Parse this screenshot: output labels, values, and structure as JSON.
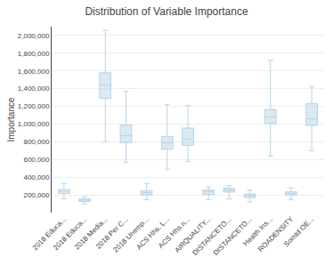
{
  "chart_data": {
    "type": "box",
    "title": "Distribution of Variable Importance",
    "ylabel": "Importance",
    "color": "#b8d4e8",
    "categories": [
      "2018 Educa...",
      "2018 Educa...",
      "2018 Media...",
      "2018 Per C...",
      "2018 Unemp...",
      "ACS Hhs. L...",
      "ACS Hhs.n...",
      "AIRQUALITY...",
      "DISTANCETO...",
      "DISTANCETO...",
      "Health Ins...",
      "ROADENSITY",
      "Somtd OE..."
    ],
    "boxes": [
      {
        "q1": 215000,
        "median": 240000,
        "q3": 260000,
        "whisker_low": 155000,
        "whisker_high": 330000
      },
      {
        "q1": 125000,
        "median": 140000,
        "q3": 155000,
        "whisker_low": 100000,
        "whisker_high": 180000
      },
      {
        "q1": 1290000,
        "median": 1440000,
        "q3": 1580000,
        "whisker_low": 800000,
        "whisker_high": 2060000
      },
      {
        "q1": 790000,
        "median": 870000,
        "q3": 990000,
        "whisker_low": 570000,
        "whisker_high": 1370000
      },
      {
        "q1": 200000,
        "median": 225000,
        "q3": 245000,
        "whisker_low": 145000,
        "whisker_high": 330000
      },
      {
        "q1": 715000,
        "median": 790000,
        "q3": 860000,
        "whisker_low": 490000,
        "whisker_high": 1220000
      },
      {
        "q1": 760000,
        "median": 830000,
        "q3": 955000,
        "whisker_low": 575000,
        "whisker_high": 1210000
      },
      {
        "q1": 205000,
        "median": 235000,
        "q3": 255000,
        "whisker_low": 145000,
        "whisker_high": 290000
      },
      {
        "q1": 232000,
        "median": 255000,
        "q3": 275000,
        "whisker_low": 155000,
        "whisker_high": 305000
      },
      {
        "q1": 170000,
        "median": 190000,
        "q3": 210000,
        "whisker_low": 120000,
        "whisker_high": 255000
      },
      {
        "q1": 1005000,
        "median": 1080000,
        "q3": 1165000,
        "whisker_low": 640000,
        "whisker_high": 1720000
      },
      {
        "q1": 200000,
        "median": 218000,
        "q3": 235000,
        "whisker_low": 145000,
        "whisker_high": 280000
      },
      {
        "q1": 985000,
        "median": 1060000,
        "q3": 1230000,
        "whisker_low": 700000,
        "whisker_high": 1420000
      }
    ],
    "ylim": [
      0,
      2100000
    ],
    "yticks": [
      {
        "value": 200000,
        "label": "200,000"
      },
      {
        "value": 400000,
        "label": "400,000"
      },
      {
        "value": 600000,
        "label": "600,000"
      },
      {
        "value": 800000,
        "label": "800,000"
      },
      {
        "value": 1000000,
        "label": "1,000,000"
      },
      {
        "value": 1200000,
        "label": "1,200,000"
      },
      {
        "value": 1400000,
        "label": "1,400,000"
      },
      {
        "value": 1600000,
        "label": "1,600,000"
      },
      {
        "value": 1800000,
        "label": "1,800,000"
      },
      {
        "value": 2000000,
        "label": "2,000,000"
      }
    ],
    "grid": true
  }
}
